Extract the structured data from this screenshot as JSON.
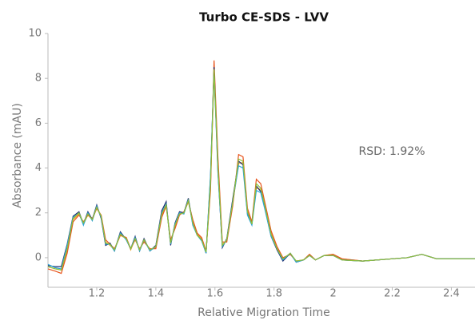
{
  "chart_data": {
    "type": "line",
    "title": "Turbo CE-SDS - LVV",
    "xlabel": "Relative Migration Time",
    "ylabel": "Absorbance (mAU)",
    "annotation": "RSD: 1.92%",
    "x": [
      1.035,
      1.06,
      1.08,
      1.1,
      1.12,
      1.14,
      1.155,
      1.17,
      1.185,
      1.2,
      1.215,
      1.23,
      1.245,
      1.26,
      1.28,
      1.3,
      1.315,
      1.33,
      1.345,
      1.36,
      1.38,
      1.4,
      1.42,
      1.435,
      1.45,
      1.465,
      1.48,
      1.495,
      1.51,
      1.525,
      1.54,
      1.555,
      1.57,
      1.585,
      1.597,
      1.61,
      1.625,
      1.64,
      1.66,
      1.68,
      1.695,
      1.71,
      1.725,
      1.74,
      1.755,
      1.77,
      1.79,
      1.81,
      1.83,
      1.855,
      1.875,
      1.9,
      1.92,
      1.94,
      1.97,
      2.0,
      2.03,
      2.1,
      2.2,
      2.25,
      2.3,
      2.35,
      2.4,
      2.48
    ],
    "series": [
      {
        "color": "#f0a830",
        "values": [
          -0.4,
          -0.5,
          -0.55,
          0.3,
          1.7,
          1.95,
          1.5,
          1.9,
          1.7,
          2.2,
          1.85,
          0.7,
          0.55,
          0.35,
          1.0,
          0.85,
          0.35,
          0.85,
          0.35,
          0.75,
          0.35,
          0.45,
          1.9,
          2.3,
          0.7,
          1.4,
          1.95,
          2.0,
          2.5,
          1.6,
          1.05,
          0.85,
          0.25,
          3.2,
          8.2,
          4.2,
          0.6,
          0.75,
          2.4,
          4.2,
          4.25,
          2.1,
          1.5,
          3.1,
          3.05,
          2.3,
          1.1,
          0.45,
          -0.05,
          0.15,
          -0.15,
          -0.1,
          0.15,
          -0.1,
          0.1,
          0.15,
          -0.05,
          -0.15,
          -0.05,
          0.0,
          0.15,
          -0.05,
          -0.05,
          -0.05
        ]
      },
      {
        "color": "#e8541c",
        "values": [
          -0.5,
          -0.6,
          -0.7,
          0.2,
          1.6,
          1.9,
          1.6,
          1.9,
          1.75,
          2.2,
          1.9,
          0.8,
          0.6,
          0.4,
          1.0,
          0.9,
          0.4,
          0.8,
          0.4,
          0.7,
          0.4,
          0.4,
          1.8,
          2.3,
          0.8,
          1.3,
          1.9,
          2.05,
          2.5,
          1.7,
          1.1,
          0.9,
          0.3,
          3.0,
          8.8,
          4.5,
          0.7,
          0.7,
          2.3,
          4.6,
          4.5,
          2.2,
          1.6,
          3.5,
          3.3,
          2.4,
          1.2,
          0.5,
          0.0,
          0.15,
          -0.15,
          -0.1,
          0.15,
          -0.1,
          0.1,
          0.15,
          -0.05,
          -0.15,
          -0.05,
          0.0,
          0.15,
          -0.05,
          -0.05,
          -0.05
        ]
      },
      {
        "color": "#1f2a6b",
        "values": [
          -0.35,
          -0.4,
          -0.4,
          0.6,
          1.85,
          2.05,
          1.5,
          2.05,
          1.7,
          2.35,
          1.75,
          0.55,
          0.65,
          0.3,
          1.15,
          0.8,
          0.4,
          0.95,
          0.3,
          0.85,
          0.3,
          0.55,
          2.1,
          2.5,
          0.55,
          1.55,
          2.05,
          2.0,
          2.65,
          1.5,
          1.0,
          0.8,
          0.2,
          3.6,
          8.5,
          3.9,
          0.45,
          0.85,
          2.6,
          4.3,
          4.15,
          1.95,
          1.5,
          3.2,
          2.95,
          2.15,
          0.95,
          0.35,
          -0.15,
          0.2,
          -0.2,
          -0.1,
          0.1,
          -0.1,
          0.1,
          0.1,
          -0.1,
          -0.15,
          -0.05,
          0.0,
          0.15,
          -0.05,
          -0.05,
          -0.05
        ]
      },
      {
        "color": "#2aa4d8",
        "values": [
          -0.3,
          -0.45,
          -0.5,
          0.55,
          1.8,
          2.0,
          1.45,
          2.0,
          1.65,
          2.3,
          1.8,
          0.6,
          0.6,
          0.3,
          1.1,
          0.8,
          0.4,
          0.9,
          0.3,
          0.8,
          0.3,
          0.5,
          2.0,
          2.4,
          0.6,
          1.5,
          2.0,
          1.95,
          2.6,
          1.45,
          1.0,
          0.75,
          0.2,
          3.7,
          8.3,
          3.8,
          0.5,
          0.8,
          2.5,
          4.1,
          4.0,
          1.9,
          1.45,
          3.0,
          2.9,
          2.1,
          0.95,
          0.4,
          -0.1,
          0.2,
          -0.2,
          -0.1,
          0.1,
          -0.1,
          0.1,
          0.1,
          -0.1,
          -0.15,
          -0.05,
          0.0,
          0.15,
          -0.05,
          -0.05,
          -0.05
        ]
      },
      {
        "color": "#8fbf3a",
        "values": [
          -0.4,
          -0.5,
          -0.55,
          0.4,
          1.75,
          2.0,
          1.55,
          1.95,
          1.7,
          2.25,
          1.85,
          0.65,
          0.6,
          0.35,
          1.05,
          0.85,
          0.4,
          0.85,
          0.35,
          0.8,
          0.35,
          0.5,
          1.95,
          2.35,
          0.65,
          1.45,
          1.95,
          2.0,
          2.55,
          1.55,
          1.0,
          0.8,
          0.25,
          3.3,
          8.4,
          4.1,
          0.55,
          0.8,
          2.45,
          4.4,
          4.3,
          2.05,
          1.5,
          3.3,
          3.1,
          2.25,
          1.05,
          0.4,
          -0.05,
          0.2,
          -0.15,
          -0.1,
          0.1,
          -0.1,
          0.1,
          0.1,
          -0.1,
          -0.15,
          -0.05,
          0.0,
          0.15,
          -0.05,
          -0.05,
          -0.05
        ]
      }
    ],
    "xlim": [
      1.035,
      2.48
    ],
    "ylim": [
      -1.32,
      10
    ],
    "xticks": [
      1.2,
      1.4,
      1.6,
      1.8,
      2,
      2.2,
      2.4
    ],
    "yticks": [
      0,
      2,
      4,
      6,
      8,
      10
    ],
    "grid": false
  }
}
